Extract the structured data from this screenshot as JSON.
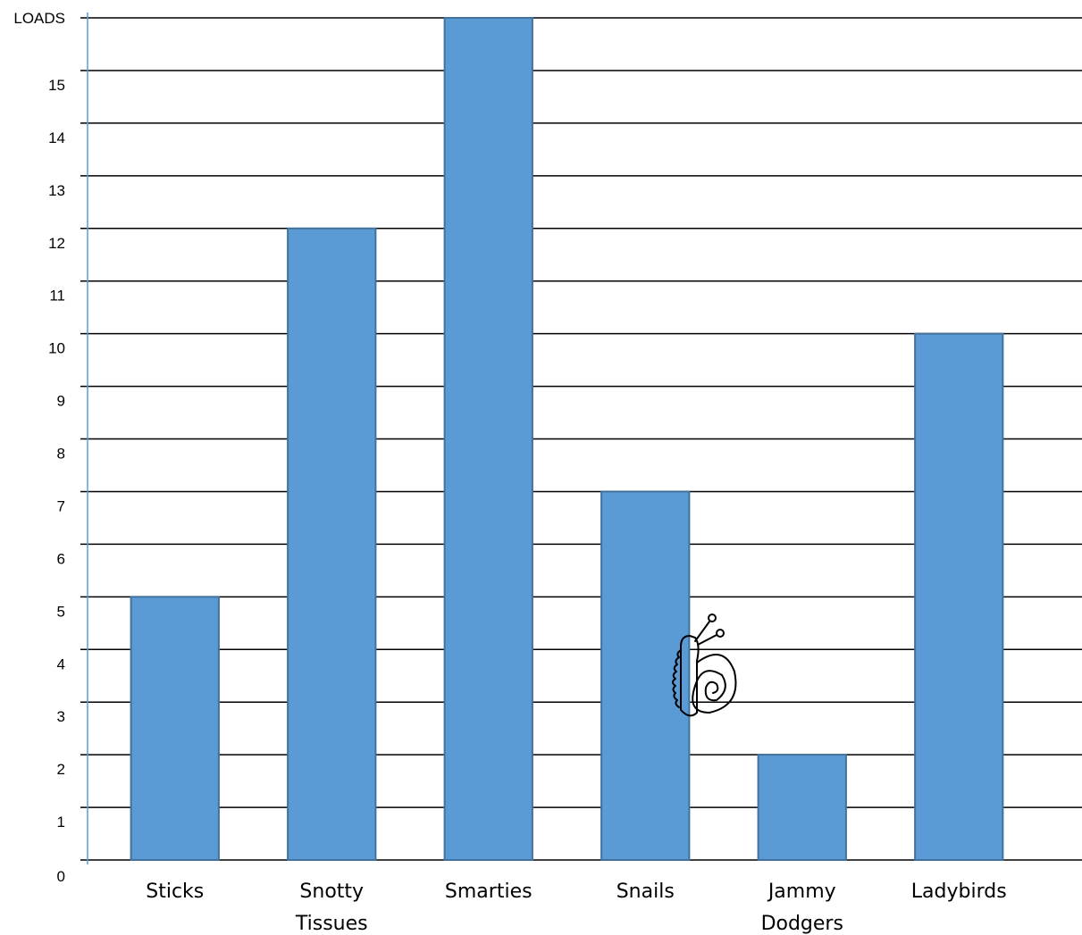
{
  "chart_data": {
    "type": "bar",
    "title": "",
    "xlabel": "",
    "ylabel": "",
    "ylim": [
      0,
      16
    ],
    "y_ticks": [
      "0",
      "1",
      "2",
      "3",
      "4",
      "5",
      "6",
      "7",
      "8",
      "9",
      "10",
      "11",
      "12",
      "13",
      "14",
      "15",
      "LOADS"
    ],
    "categories": [
      [
        "Sticks"
      ],
      [
        "Snotty",
        "Tissues"
      ],
      [
        "Smarties"
      ],
      [
        "Snails"
      ],
      [
        "Jammy",
        "Dodgers"
      ],
      [
        "Ladybirds"
      ]
    ],
    "values": [
      5,
      12,
      16,
      7,
      2,
      10
    ],
    "grid": true,
    "colors": {
      "bar_fill": "#5b9bd5",
      "bar_stroke": "#41719c",
      "gridline": "#000000",
      "axis": "#5b9bd5"
    },
    "decoration": {
      "icon": "snail-icon",
      "near_category": "Snails"
    }
  }
}
